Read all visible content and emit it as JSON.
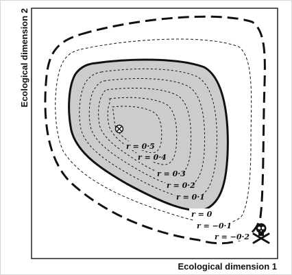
{
  "axes": {
    "x_label": "Ecological dimension 1",
    "y_label": "Ecological dimension 2"
  },
  "contours": [
    {
      "id": "r-0.5",
      "label": "r = 0·5",
      "style": "dotted-inner"
    },
    {
      "id": "r-0.4",
      "label": "r = 0·4",
      "style": "dotted-inner"
    },
    {
      "id": "r-0.3",
      "label": "r = 0·3",
      "style": "dotted-inner"
    },
    {
      "id": "r-0.2",
      "label": "r = 0·2",
      "style": "dotted-inner"
    },
    {
      "id": "r-0.1",
      "label": "r = 0·1",
      "style": "dotted-inner"
    },
    {
      "id": "r-0",
      "label": "r = 0",
      "style": "solid-thick",
      "fill": "#cccccc"
    },
    {
      "id": "r-neg-0.1",
      "label": "r = −0·1",
      "style": "short-dash"
    },
    {
      "id": "r-neg-0.2",
      "label": "r = −0·2",
      "style": "long-dash-thick"
    }
  ],
  "markers": {
    "optimum": "circled-cross-icon",
    "death": "skull-and-crossbones-icon"
  },
  "colors": {
    "line": "#111111",
    "fill_viable": "#cccccc",
    "background": "#ffffff"
  }
}
